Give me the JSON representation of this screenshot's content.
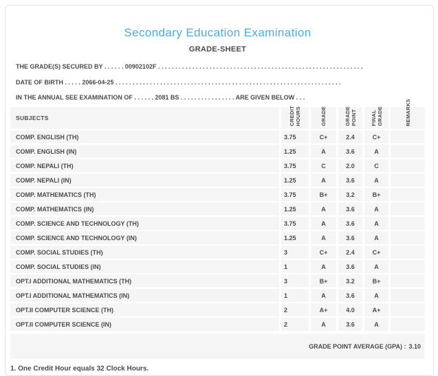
{
  "header": {
    "title": "Secondary Education Examination",
    "subtitle": "GRADE-SHEET"
  },
  "info_lines": [
    {
      "label": "THE GRADE(S) SECURED BY",
      "dots_before": ". . . . . .",
      "value": "00902102F",
      "dots_after": ". . . . . . . . . . . . . . . . . . . . . . . . . . . . . . . . . . . . . . . . . . . . . . . . . . . . . . . . . . . .",
      "suffix": ""
    },
    {
      "label": "DATE OF BIRTH",
      "dots_before": ". . . . .",
      "value": "2066-04-25",
      "dots_after": ". . . . . . . . . . . . . . . . . . . . . . . . . . . . . . . . . . . . . . . . . . . . . . . . . . . . . . . . . . . . . . . . . .",
      "suffix": ""
    },
    {
      "label": "IN THE ANNUAL SEE EXAMINATION OF",
      "dots_before": ". . . . . .",
      "value": "2081 BS",
      "dots_after": ". . . . . . . . . . . . . . . .",
      "suffix": "ARE GIVEN BELOW . . ."
    }
  ],
  "table": {
    "columns": {
      "subjects": "SUBJECTS",
      "credit_hours": "CREDIT\nHOURS",
      "grade": "GRADE",
      "grade_point": "GRADE\nPOINT",
      "final_grade": "FINAL\nGRADE",
      "remarks": "REMARKS"
    },
    "rows": [
      {
        "subject": "COMP. ENGLISH (TH)",
        "credit_hours": "3.75",
        "grade": "C+",
        "grade_point": "2.4",
        "final_grade": "C+",
        "remarks": ""
      },
      {
        "subject": "COMP. ENGLISH (IN)",
        "credit_hours": "1.25",
        "grade": "A",
        "grade_point": "3.6",
        "final_grade": "A",
        "remarks": ""
      },
      {
        "subject": "COMP. NEPALI (TH)",
        "credit_hours": "3.75",
        "grade": "C",
        "grade_point": "2.0",
        "final_grade": "C",
        "remarks": ""
      },
      {
        "subject": "COMP. NEPALI (IN)",
        "credit_hours": "1.25",
        "grade": "A",
        "grade_point": "3.6",
        "final_grade": "A",
        "remarks": ""
      },
      {
        "subject": "COMP. MATHEMATICS (TH)",
        "credit_hours": "3.75",
        "grade": "B+",
        "grade_point": "3.2",
        "final_grade": "B+",
        "remarks": ""
      },
      {
        "subject": "COMP. MATHEMATICS (IN)",
        "credit_hours": "1.25",
        "grade": "A",
        "grade_point": "3.6",
        "final_grade": "A",
        "remarks": ""
      },
      {
        "subject": "COMP. SCIENCE AND TECHNOLOGY (TH)",
        "credit_hours": "3.75",
        "grade": "A",
        "grade_point": "3.6",
        "final_grade": "A",
        "remarks": ""
      },
      {
        "subject": "COMP. SCIENCE AND TECHNOLOGY (IN)",
        "credit_hours": "1.25",
        "grade": "A",
        "grade_point": "3.6",
        "final_grade": "A",
        "remarks": ""
      },
      {
        "subject": "COMP. SOCIAL STUDIES (TH)",
        "credit_hours": "3",
        "grade": "C+",
        "grade_point": "2.4",
        "final_grade": "C+",
        "remarks": ""
      },
      {
        "subject": "COMP. SOCIAL STUDIES (IN)",
        "credit_hours": "1",
        "grade": "A",
        "grade_point": "3.6",
        "final_grade": "A",
        "remarks": ""
      },
      {
        "subject": "OPT.I ADDITIONAL MATHEMATICS (TH)",
        "credit_hours": "3",
        "grade": "B+",
        "grade_point": "3.2",
        "final_grade": "B+",
        "remarks": ""
      },
      {
        "subject": "OPT.I ADDITIONAL MATHEMATICS (IN)",
        "credit_hours": "1",
        "grade": "A",
        "grade_point": "3.6",
        "final_grade": "A",
        "remarks": ""
      },
      {
        "subject": "OPT.II COMPUTER SCIENCE (TH)",
        "credit_hours": "2",
        "grade": "A+",
        "grade_point": "4.0",
        "final_grade": "A+",
        "remarks": ""
      },
      {
        "subject": "OPT.II COMPUTER SCIENCE (IN)",
        "credit_hours": "2",
        "grade": "A",
        "grade_point": "3.6",
        "final_grade": "A",
        "remarks": ""
      }
    ]
  },
  "summary": {
    "gpa_label": "GRADE POINT AVERAGE (GPA) :",
    "gpa_value": "3.10"
  },
  "footnote": "1. One Credit Hour equals 32 Clock Hours.",
  "colors": {
    "title_blue": "#4aacdf",
    "text_dark": "#4a4a4a",
    "row_bg": "#f5f5f5",
    "frame_border": "#e4e4e4"
  }
}
